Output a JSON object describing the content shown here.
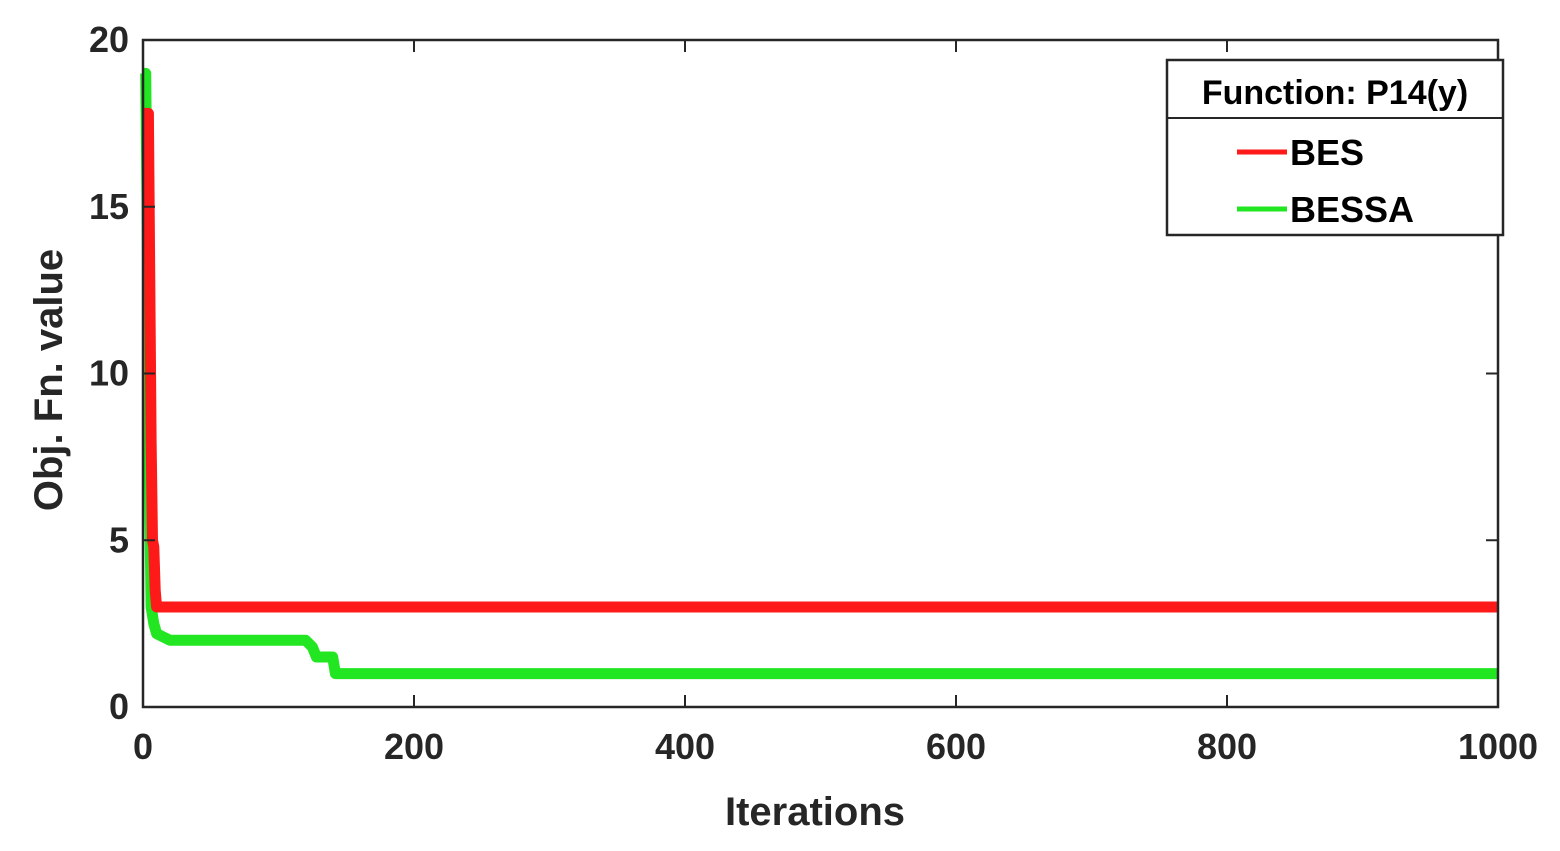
{
  "chart_data": {
    "type": "line",
    "xlabel": "Iterations",
    "ylabel": "Obj. Fn. value",
    "xlim": [
      0,
      1000
    ],
    "ylim": [
      0,
      20
    ],
    "xticks": [
      0,
      200,
      400,
      600,
      800,
      1000
    ],
    "yticks": [
      0,
      5,
      10,
      15,
      20
    ],
    "grid": false,
    "box": true,
    "legend": {
      "title": "Function: P14(y)",
      "placement": "top-right"
    },
    "series": [
      {
        "name": "BES",
        "color": "#ff1a1a",
        "x": [
          0,
          4,
          6,
          7,
          8,
          9,
          10,
          12,
          1000
        ],
        "y": [
          17.8,
          17.8,
          8,
          5,
          4.8,
          3.5,
          3.0,
          3.0,
          3.0
        ]
      },
      {
        "name": "BESSA",
        "color": "#22e622",
        "x": [
          0,
          2,
          3,
          4,
          5,
          6,
          8,
          10,
          15,
          20,
          25,
          120,
          125,
          128,
          135,
          140,
          142,
          150,
          1000
        ],
        "y": [
          19,
          19,
          15,
          10,
          6,
          3,
          2.5,
          2.2,
          2.1,
          2.0,
          2.0,
          2.0,
          1.8,
          1.5,
          1.5,
          1.5,
          1.0,
          1.0,
          1.0
        ]
      }
    ]
  }
}
